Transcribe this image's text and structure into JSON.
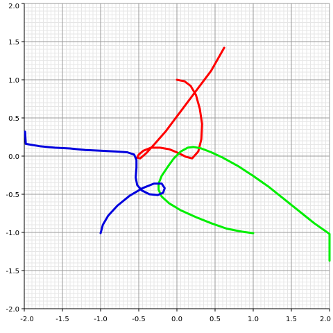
{
  "chart_data": {
    "type": "line",
    "title": "",
    "xlabel": "",
    "ylabel": "",
    "xlim": [
      -2.0,
      2.0
    ],
    "ylim": [
      -2.0,
      2.0
    ],
    "grid": true,
    "minor_grid": true,
    "x_ticks": [
      "-2.0",
      "-1.5",
      "-1.0",
      "-0.5",
      "0.0",
      "0.5",
      "1.0",
      "1.5",
      "2.0"
    ],
    "y_ticks": [
      "-2.0",
      "-1.5",
      "-1.0",
      "-0.5",
      "0.0",
      "0.5",
      "1.0",
      "1.5",
      "2.0"
    ],
    "colors": {
      "grid_minor": "#e6e6e6",
      "grid_major": "#9a9a9a",
      "axis": "#000000"
    },
    "series": [
      {
        "color": "#ff0000",
        "points": [
          [
            0.0,
            1.0
          ],
          [
            0.1,
            0.98
          ],
          [
            0.18,
            0.92
          ],
          [
            0.25,
            0.8
          ],
          [
            0.3,
            0.62
          ],
          [
            0.33,
            0.42
          ],
          [
            0.32,
            0.22
          ],
          [
            0.28,
            0.06
          ],
          [
            0.2,
            -0.03
          ],
          [
            0.12,
            -0.01
          ],
          [
            0.02,
            0.04
          ],
          [
            -0.1,
            0.09
          ],
          [
            -0.22,
            0.11
          ],
          [
            -0.34,
            0.11
          ],
          [
            -0.44,
            0.07
          ],
          [
            -0.5,
            0.02
          ],
          [
            -0.52,
            -0.02
          ],
          [
            -0.48,
            -0.03
          ],
          [
            -0.4,
            0.04
          ],
          [
            -0.3,
            0.15
          ],
          [
            -0.15,
            0.32
          ],
          [
            0.0,
            0.52
          ],
          [
            0.15,
            0.72
          ],
          [
            0.3,
            0.92
          ],
          [
            0.45,
            1.12
          ],
          [
            0.62,
            1.42
          ]
        ]
      },
      {
        "color": "#00ee00",
        "points": [
          [
            1.0,
            -1.01
          ],
          [
            0.85,
            -0.99
          ],
          [
            0.65,
            -0.95
          ],
          [
            0.45,
            -0.88
          ],
          [
            0.25,
            -0.8
          ],
          [
            0.05,
            -0.71
          ],
          [
            -0.1,
            -0.62
          ],
          [
            -0.2,
            -0.53
          ],
          [
            -0.24,
            -0.44
          ],
          [
            -0.24,
            -0.36
          ],
          [
            -0.2,
            -0.26
          ],
          [
            -0.12,
            -0.14
          ],
          [
            -0.04,
            -0.03
          ],
          [
            0.05,
            0.06
          ],
          [
            0.14,
            0.11
          ],
          [
            0.22,
            0.12
          ],
          [
            0.32,
            0.1
          ],
          [
            0.45,
            0.05
          ],
          [
            0.6,
            -0.02
          ],
          [
            0.8,
            -0.13
          ],
          [
            1.0,
            -0.26
          ],
          [
            1.2,
            -0.4
          ],
          [
            1.4,
            -0.56
          ],
          [
            1.6,
            -0.72
          ],
          [
            1.8,
            -0.88
          ],
          [
            2.0,
            -1.02
          ],
          [
            2.0,
            -1.37
          ]
        ]
      },
      {
        "color": "#0000dd",
        "points": [
          [
            -1.0,
            -1.01
          ],
          [
            -0.97,
            -0.9
          ],
          [
            -0.9,
            -0.78
          ],
          [
            -0.78,
            -0.65
          ],
          [
            -0.62,
            -0.52
          ],
          [
            -0.45,
            -0.42
          ],
          [
            -0.3,
            -0.36
          ],
          [
            -0.2,
            -0.36
          ],
          [
            -0.16,
            -0.42
          ],
          [
            -0.18,
            -0.48
          ],
          [
            -0.25,
            -0.51
          ],
          [
            -0.36,
            -0.5
          ],
          [
            -0.46,
            -0.45
          ],
          [
            -0.52,
            -0.38
          ],
          [
            -0.54,
            -0.28
          ],
          [
            -0.53,
            -0.15
          ],
          [
            -0.53,
            -0.05
          ],
          [
            -0.56,
            0.02
          ],
          [
            -0.65,
            0.05
          ],
          [
            -0.8,
            0.06
          ],
          [
            -1.0,
            0.07
          ],
          [
            -1.2,
            0.08
          ],
          [
            -1.4,
            0.1
          ],
          [
            -1.6,
            0.11
          ],
          [
            -1.8,
            0.13
          ],
          [
            -1.98,
            0.16
          ],
          [
            -1.99,
            0.32
          ]
        ]
      }
    ]
  }
}
